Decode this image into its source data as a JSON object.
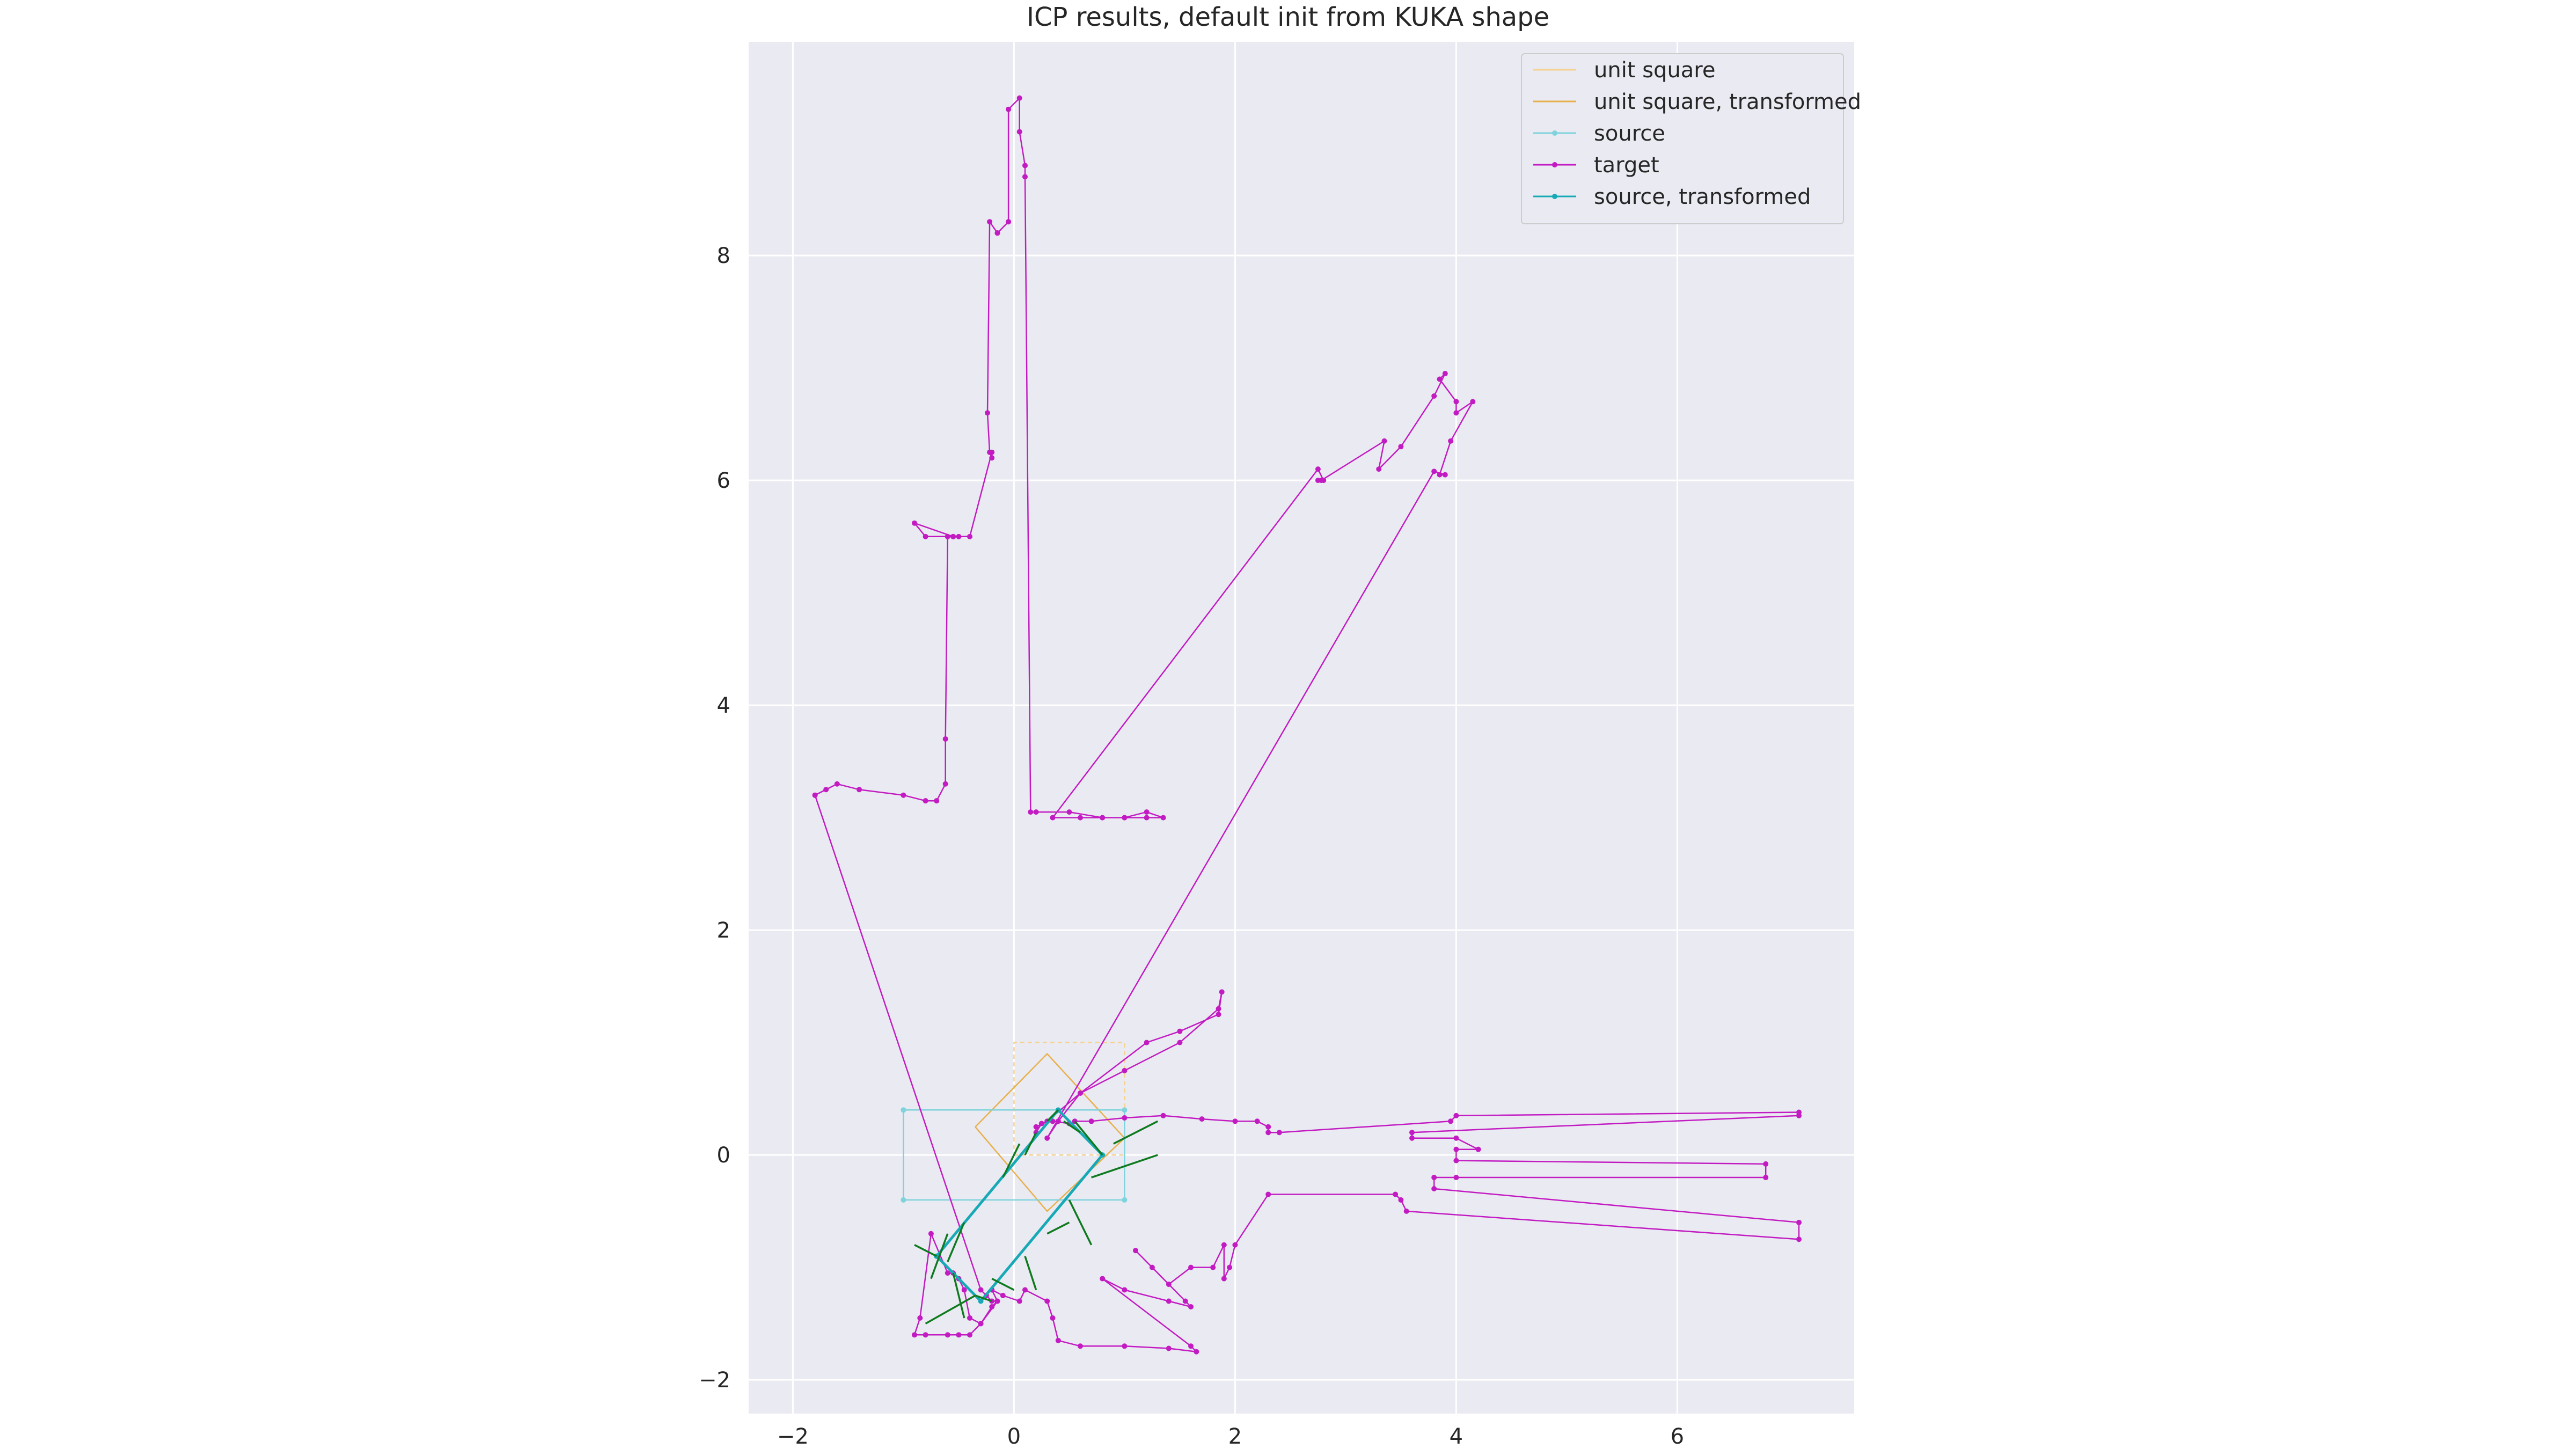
{
  "chart_data": {
    "type": "line",
    "title": "ICP results, default init from KUKA shape",
    "xlabel": "",
    "ylabel": "",
    "xlim": [
      -2.4,
      7.6
    ],
    "ylim": [
      -2.3,
      9.9
    ],
    "xticks": [
      -2,
      0,
      2,
      4,
      6
    ],
    "yticks": [
      -2,
      0,
      2,
      4,
      6,
      8
    ],
    "xtick_labels": [
      "−2",
      "0",
      "2",
      "4",
      "6"
    ],
    "ytick_labels": [
      "−2",
      "0",
      "2",
      "4",
      "6",
      "8"
    ],
    "grid": true,
    "legend_position": "top-right",
    "legend": [
      {
        "label": "unit square",
        "color": "#f5d28f",
        "marker": false
      },
      {
        "label": "unit square, transformed",
        "color": "#e8b04b",
        "marker": false
      },
      {
        "label": "source",
        "color": "#7fd3dc",
        "marker": true
      },
      {
        "label": "target",
        "color": "#c21bc2",
        "marker": true
      },
      {
        "label": "source, transformed",
        "color": "#17a9b5",
        "marker": true
      }
    ],
    "series": [
      {
        "name": "unit square",
        "color": "#f5d28f",
        "dashed": true,
        "x": [
          0,
          1,
          1,
          0,
          0
        ],
        "y": [
          0,
          0,
          1,
          1,
          0
        ]
      },
      {
        "name": "unit square, transformed",
        "color": "#e8b04b",
        "x": [
          -0.35,
          0.3,
          1.0,
          0.3,
          -0.35
        ],
        "y": [
          0.25,
          0.9,
          0.15,
          -0.5,
          0.25
        ]
      },
      {
        "name": "source",
        "color": "#7fd3dc",
        "marker": true,
        "x": [
          -1.0,
          1.0,
          1.0,
          -1.0,
          -1.0
        ],
        "y": [
          0.4,
          0.4,
          -0.4,
          -0.4,
          0.4
        ]
      },
      {
        "name": "target",
        "color": "#c21bc2",
        "marker": true,
        "x": [
          -1.8,
          -1.7,
          -1.6,
          -1.4,
          -1.0,
          -0.8,
          -0.7,
          -0.62,
          -0.62,
          -0.6,
          -0.55,
          -0.55,
          -0.9,
          -0.8,
          -0.5,
          -0.4,
          -0.2,
          -0.2,
          -0.22,
          -0.24,
          -0.22,
          -0.15,
          -0.15,
          -0.05,
          -0.05,
          0.05,
          0.05,
          0.1,
          0.1,
          0.15,
          0.2,
          0.5,
          0.8,
          1.0,
          1.2,
          1.35,
          1.2,
          1.0,
          0.8,
          0.6,
          0.35,
          2.75,
          2.8,
          2.75,
          2.78,
          3.35,
          3.3,
          3.5,
          3.8,
          3.9,
          3.85,
          4.0,
          4.0,
          4.15,
          3.95,
          3.85,
          3.9,
          3.8,
          0.3,
          0.4,
          0.6,
          1.0,
          1.5,
          1.85,
          1.88,
          1.85,
          1.5,
          1.2,
          0.6,
          0.3,
          0.2,
          0.2,
          0.25,
          0.35,
          0.5,
          0.55,
          0.7,
          1.0,
          1.35,
          1.7,
          2.0,
          2.2,
          2.3,
          2.3,
          2.4,
          3.95,
          4.0,
          7.1,
          7.1,
          3.6,
          3.6,
          4.0,
          4.2,
          4.0,
          4.0,
          6.8,
          6.8,
          4.0,
          3.8,
          3.8,
          7.1,
          7.1,
          3.55,
          3.5,
          3.45,
          2.3,
          2.0,
          1.95,
          1.9,
          1.9,
          1.8,
          1.6,
          1.4,
          1.25,
          1.1,
          1.55,
          1.6,
          1.4,
          1.0,
          0.8,
          1.6,
          1.65,
          1.4,
          1.0,
          0.6,
          0.4,
          0.35,
          0.3,
          0.1,
          0.05,
          -0.1,
          -0.2,
          -0.15,
          -0.3,
          -0.4,
          -0.45,
          -0.5,
          -0.55,
          -0.6,
          -0.75,
          -0.85,
          -0.9,
          -0.8,
          -0.6,
          -0.5,
          -0.4,
          -0.3,
          -0.2,
          -0.15,
          -0.2,
          -0.25,
          -0.3,
          -1.8
        ],
        "y": [
          3.2,
          3.25,
          3.3,
          3.25,
          3.2,
          3.15,
          3.15,
          3.3,
          3.7,
          5.5,
          5.5,
          5.5,
          5.62,
          5.5,
          5.5,
          5.5,
          6.25,
          6.2,
          6.25,
          6.6,
          8.3,
          8.2,
          8.2,
          8.3,
          9.3,
          9.4,
          9.1,
          8.8,
          8.7,
          3.05,
          3.05,
          3.05,
          3.0,
          3.0,
          3.05,
          3.0,
          3.0,
          3.0,
          3.0,
          3.0,
          3.0,
          6.1,
          6.0,
          6.0,
          6.0,
          6.35,
          6.1,
          6.3,
          6.75,
          6.95,
          6.9,
          6.7,
          6.6,
          6.7,
          6.35,
          6.05,
          6.05,
          6.08,
          0.15,
          0.3,
          0.55,
          0.75,
          1.0,
          1.3,
          1.45,
          1.25,
          1.1,
          1.0,
          0.55,
          0.3,
          0.25,
          0.2,
          0.28,
          0.3,
          0.28,
          0.3,
          0.3,
          0.33,
          0.35,
          0.32,
          0.3,
          0.3,
          0.25,
          0.2,
          0.2,
          0.3,
          0.35,
          0.38,
          0.35,
          0.2,
          0.15,
          0.15,
          0.05,
          0.05,
          -0.05,
          -0.08,
          -0.2,
          -0.2,
          -0.2,
          -0.3,
          -0.6,
          -0.75,
          -0.5,
          -0.4,
          -0.35,
          -0.35,
          -0.8,
          -1.0,
          -1.1,
          -0.8,
          -1.0,
          -1.0,
          -1.15,
          -1.0,
          -0.85,
          -1.3,
          -1.35,
          -1.3,
          -1.2,
          -1.1,
          -1.7,
          -1.75,
          -1.72,
          -1.7,
          -1.7,
          -1.65,
          -1.45,
          -1.3,
          -1.2,
          -1.3,
          -1.25,
          -1.2,
          -1.3,
          -1.5,
          -1.45,
          -1.2,
          -1.1,
          -1.05,
          -1.05,
          -0.7,
          -1.45,
          -1.6,
          -1.6,
          -1.6,
          -1.6,
          -1.6,
          -1.5,
          -1.35,
          -1.3,
          -1.3,
          -1.25,
          -1.2,
          3.2
        ]
      },
      {
        "name": "source, transformed",
        "color": "#17a9b5",
        "marker": true,
        "x": [
          -0.7,
          0.4,
          0.8,
          -0.3,
          -0.7
        ],
        "y": [
          -0.9,
          0.4,
          0.0,
          -1.3,
          -0.9
        ]
      },
      {
        "name": "correspondence lines",
        "color": "#0f7a1f",
        "legend": false,
        "segments": [
          [
            [
              0.8,
              0.0
            ],
            [
              0.55,
              0.3
            ]
          ],
          [
            [
              0.6,
              0.2
            ],
            [
              0.45,
              0.3
            ]
          ],
          [
            [
              0.4,
              0.4
            ],
            [
              0.3,
              0.3
            ]
          ],
          [
            [
              0.1,
              0.0
            ],
            [
              0.2,
              0.2
            ]
          ],
          [
            [
              -0.1,
              -0.2
            ],
            [
              0.05,
              0.1
            ]
          ],
          [
            [
              -0.45,
              -0.6
            ],
            [
              -0.6,
              -0.95
            ]
          ],
          [
            [
              -0.6,
              -0.7
            ],
            [
              -0.75,
              -1.1
            ]
          ],
          [
            [
              -0.55,
              -1.05
            ],
            [
              -0.45,
              -1.45
            ]
          ],
          [
            [
              -0.35,
              -1.25
            ],
            [
              -0.2,
              -1.3
            ]
          ],
          [
            [
              -0.2,
              -1.1
            ],
            [
              0.0,
              -1.2
            ]
          ],
          [
            [
              0.1,
              -0.9
            ],
            [
              0.2,
              -1.2
            ]
          ],
          [
            [
              0.3,
              -0.7
            ],
            [
              0.5,
              -0.6
            ]
          ],
          [
            [
              0.5,
              -0.4
            ],
            [
              0.7,
              -0.8
            ]
          ],
          [
            [
              0.7,
              -0.2
            ],
            [
              1.3,
              0.0
            ]
          ],
          [
            [
              0.9,
              0.1
            ],
            [
              1.3,
              0.3
            ]
          ],
          [
            [
              -0.35,
              -1.25
            ],
            [
              -0.8,
              -1.5
            ]
          ],
          [
            [
              -0.7,
              -0.9
            ],
            [
              -0.9,
              -0.8
            ]
          ]
        ]
      }
    ]
  }
}
